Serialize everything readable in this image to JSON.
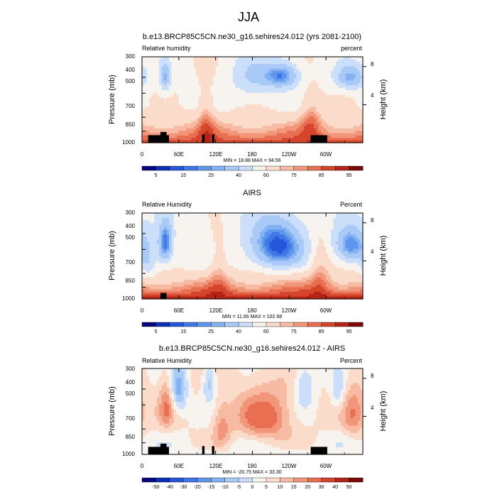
{
  "figure_title": "JJA",
  "chart_data": [
    {
      "type": "heatmap",
      "title": "b.e13.BRCP85C5CN.ne30_g16.sehires24.012 (yrs 2081-2100)",
      "left_label": "Relative humidity",
      "right_label": "percent",
      "ylabel": "Pressure (mb)",
      "ylabel_right": "Height (km)",
      "x_ticks": [
        "0",
        "60E",
        "120E",
        "180",
        "120W",
        "60W"
      ],
      "x_tick_lon": [
        0,
        60,
        120,
        180,
        240,
        300
      ],
      "xlim": [
        0,
        360
      ],
      "y_ticks": [
        300,
        400,
        500,
        700,
        850,
        1000
      ],
      "ylim": [
        1000,
        300
      ],
      "y_ticks_right": [
        "8",
        "4"
      ],
      "y_ticks_right_km": [
        8,
        4
      ],
      "stats": "MIN = 18.88  MAX = 94.56",
      "colorbar_labels": [
        "5",
        "15",
        "25",
        "40",
        "60",
        "75",
        "85",
        "95"
      ],
      "colorbar_levels": [
        5,
        10,
        15,
        20,
        25,
        30,
        40,
        50,
        60,
        70,
        75,
        80,
        85,
        90,
        95
      ],
      "colorbar_colors": [
        "#08087d",
        "#0b2fb5",
        "#2457d9",
        "#3f78e6",
        "#5f95ec",
        "#83b1f2",
        "#a9caf6",
        "#ccdffa",
        "#f7f3ef",
        "#fbdccb",
        "#f7bba3",
        "#f2967a",
        "#e86f51",
        "#d4452c",
        "#b42416",
        "#7a0909"
      ],
      "fields": {
        "base": 58,
        "lower_rh": 88,
        "dry_cores": [
          {
            "lon": 38,
            "p": 400,
            "amp": 28,
            "wlon": 6,
            "wp": 60
          },
          {
            "lon": 180,
            "p": 400,
            "amp": 18,
            "wlon": 25,
            "wp": 90
          },
          {
            "lon": 228,
            "p": 390,
            "amp": 36,
            "wlon": 20,
            "wp": 50
          },
          {
            "lon": 340,
            "p": 400,
            "amp": 30,
            "wlon": 18,
            "wp": 50
          }
        ],
        "moist_cores": [
          {
            "lon": 105,
            "p": 700,
            "amp": 14,
            "wlon": 10,
            "wp": 180
          },
          {
            "lon": 275,
            "p": 700,
            "amp": 16,
            "wlon": 12,
            "wp": 160
          }
        ],
        "land_blocks": [
          [
            10,
            44,
            900
          ],
          [
            30,
            40,
            860
          ],
          [
            98,
            102,
            890
          ],
          [
            114,
            118,
            890
          ],
          [
            275,
            302,
            900
          ]
        ]
      }
    },
    {
      "type": "heatmap",
      "title": "AIRS",
      "left_label": "Relative Humidity",
      "right_label": "Percent",
      "ylabel": "Pressure (mb)",
      "ylabel_right": "Height (km)",
      "x_ticks": [
        "0",
        "60E",
        "120E",
        "180",
        "120W",
        "60W"
      ],
      "x_tick_lon": [
        0,
        60,
        120,
        180,
        240,
        300
      ],
      "xlim": [
        0,
        360
      ],
      "y_ticks": [
        300,
        400,
        500,
        700,
        850,
        1000
      ],
      "ylim": [
        1000,
        300
      ],
      "y_ticks_right": [
        "8",
        "4"
      ],
      "y_ticks_right_km": [
        8,
        4
      ],
      "stats": "MIN = 11.66  MAX = 102.68",
      "colorbar_labels": [
        "5",
        "15",
        "25",
        "40",
        "60",
        "75",
        "85",
        "95"
      ],
      "colorbar_levels": [
        5,
        10,
        15,
        20,
        25,
        30,
        40,
        50,
        60,
        70,
        75,
        80,
        85,
        90,
        95
      ],
      "colorbar_colors": [
        "#08087d",
        "#0b2fb5",
        "#2457d9",
        "#3f78e6",
        "#5f95ec",
        "#83b1f2",
        "#a9caf6",
        "#ccdffa",
        "#f7f3ef",
        "#fbdccb",
        "#f7bba3",
        "#f2967a",
        "#e86f51",
        "#d4452c",
        "#b42416",
        "#7a0909"
      ],
      "fields": {
        "base": 55,
        "lower_rh": 92,
        "dry_cores": [
          {
            "lon": 38,
            "p": 460,
            "amp": 40,
            "wlon": 8,
            "wp": 90
          },
          {
            "lon": 220,
            "p": 470,
            "amp": 44,
            "wlon": 30,
            "wp": 110
          },
          {
            "lon": 340,
            "p": 470,
            "amp": 36,
            "wlon": 18,
            "wp": 80
          },
          {
            "lon": 10,
            "p": 600,
            "amp": 15,
            "wlon": 10,
            "wp": 120
          }
        ],
        "moist_cores": [
          {
            "lon": 125,
            "p": 650,
            "amp": 12,
            "wlon": 12,
            "wp": 200
          },
          {
            "lon": 290,
            "p": 650,
            "amp": 14,
            "wlon": 12,
            "wp": 220
          }
        ],
        "land_blocks": [
          [
            30,
            40,
            920
          ]
        ]
      }
    },
    {
      "type": "heatmap",
      "title": "b.e13.BRCP85C5CN.ne30_g16.sehires24.012 - AIRS",
      "left_label": "Relative Humidity",
      "right_label": "Percent",
      "ylabel": "Pressure (mb)",
      "ylabel_right": "Height (km)",
      "x_ticks": [
        "0",
        "60E",
        "120E",
        "180",
        "120W",
        "60W"
      ],
      "x_tick_lon": [
        0,
        60,
        120,
        180,
        240,
        300
      ],
      "xlim": [
        0,
        360
      ],
      "y_ticks": [
        300,
        400,
        500,
        700,
        850,
        1000
      ],
      "ylim": [
        1000,
        300
      ],
      "y_ticks_right": [
        "8",
        "4"
      ],
      "y_ticks_right_km": [
        8,
        4
      ],
      "stats": "MIN = -20.75  MAX = 33.30",
      "colorbar_labels": [
        "-50",
        "-40",
        "-30",
        "-20",
        "-15",
        "-10",
        "-5",
        "0",
        "5",
        "10",
        "15",
        "20",
        "30",
        "40",
        "50"
      ],
      "colorbar_levels": [
        -50,
        -40,
        -30,
        -20,
        -15,
        -10,
        -5,
        0,
        5,
        10,
        15,
        20,
        30,
        40,
        50
      ],
      "colorbar_colors": [
        "#08087d",
        "#0b2fb5",
        "#2457d9",
        "#3f78e6",
        "#5f95ec",
        "#83b1f2",
        "#a9caf6",
        "#ccdffa",
        "#f7f3ef",
        "#fbdccb",
        "#f7bba3",
        "#f2967a",
        "#e86f51",
        "#d4452c",
        "#b42416",
        "#7a0909"
      ],
      "fields": {
        "base": 6,
        "lower_rh": 2,
        "dry_cores": [
          {
            "lon": 60,
            "p": 400,
            "amp": 18,
            "wlon": 10,
            "wp": 100
          },
          {
            "lon": 110,
            "p": 360,
            "amp": 14,
            "wlon": 8,
            "wp": 80
          },
          {
            "lon": 265,
            "p": 380,
            "amp": 12,
            "wlon": 12,
            "wp": 100
          },
          {
            "lon": 320,
            "p": 420,
            "amp": 10,
            "wlon": 8,
            "wp": 80
          }
        ],
        "moist_cores": [
          {
            "lon": 200,
            "p": 600,
            "amp": 18,
            "wlon": 30,
            "wp": 150
          },
          {
            "lon": 40,
            "p": 500,
            "amp": 14,
            "wlon": 8,
            "wp": 120
          },
          {
            "lon": 345,
            "p": 560,
            "amp": 12,
            "wlon": 12,
            "wp": 150
          },
          {
            "lon": 130,
            "p": 700,
            "amp": 12,
            "wlon": 10,
            "wp": 150
          }
        ],
        "land_blocks": [
          [
            10,
            44,
            900
          ],
          [
            30,
            40,
            860
          ],
          [
            98,
            102,
            890
          ],
          [
            114,
            118,
            890
          ],
          [
            275,
            302,
            900
          ]
        ]
      }
    }
  ]
}
